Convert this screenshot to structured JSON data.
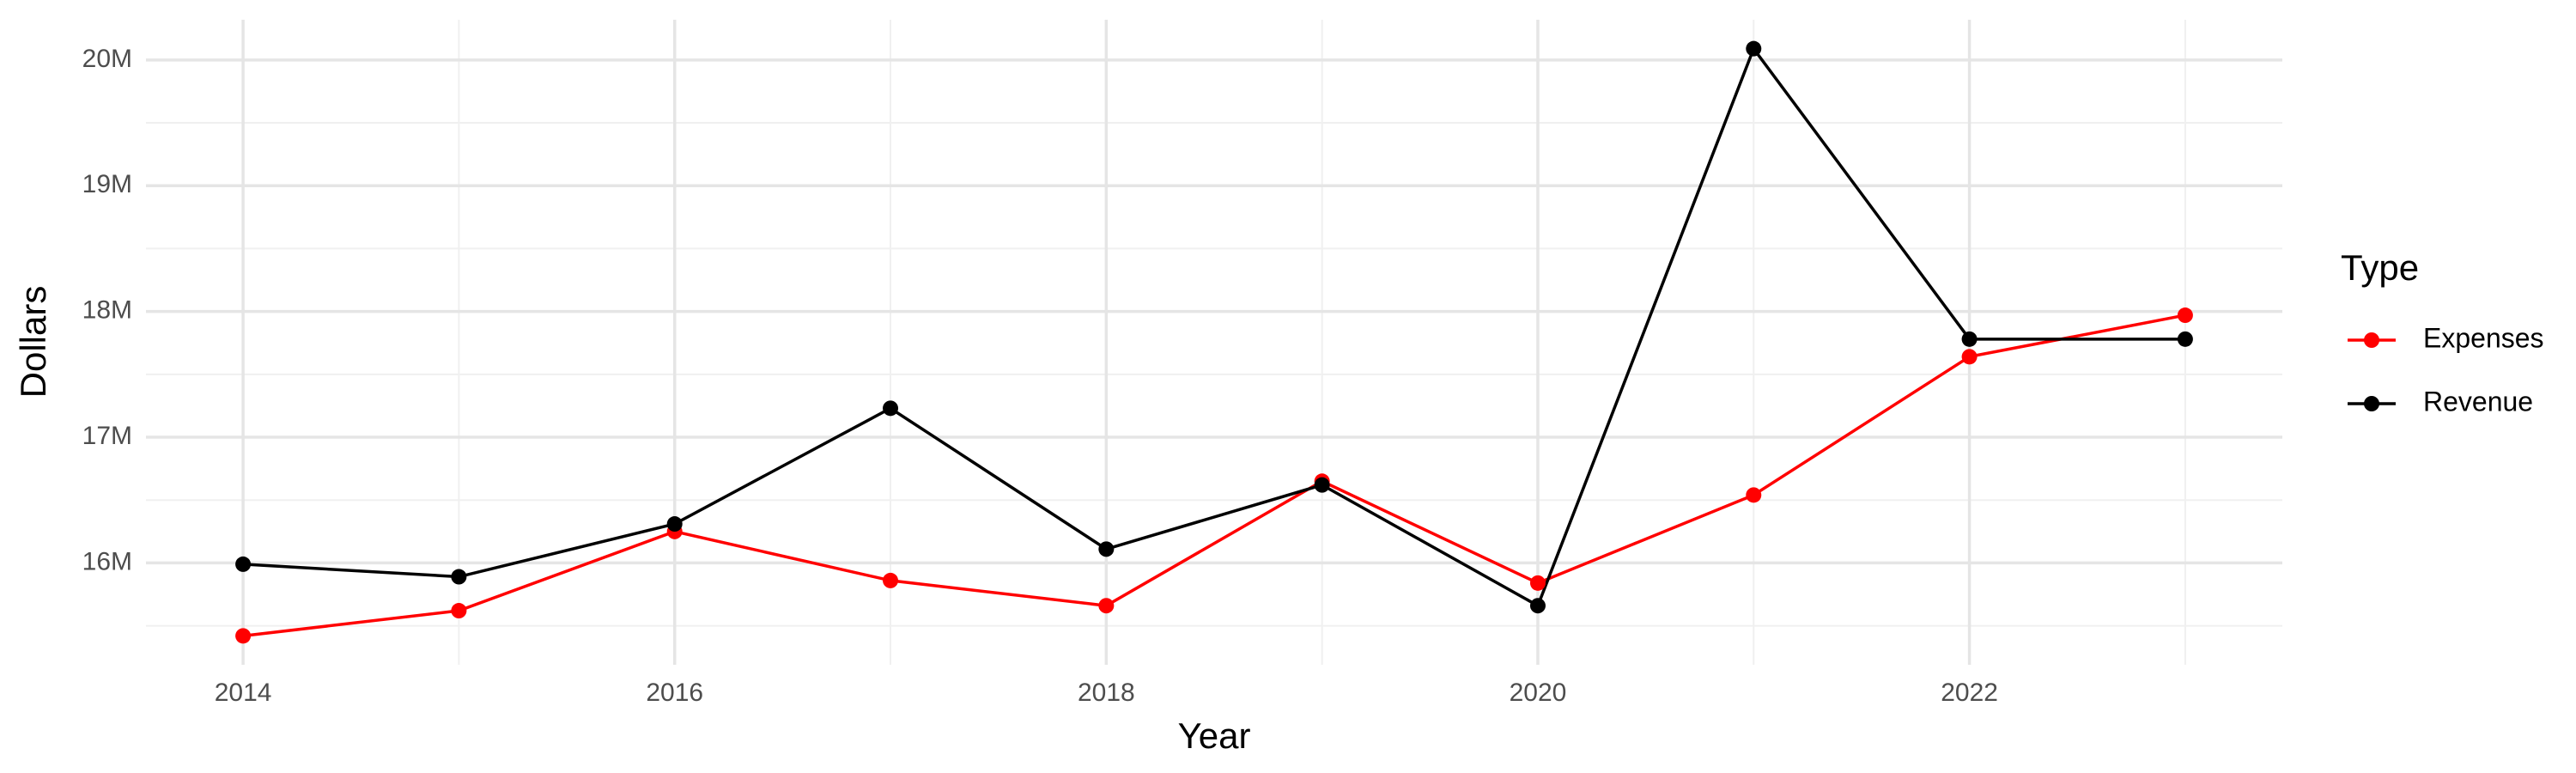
{
  "chart_data": {
    "type": "line",
    "x_label": "Year",
    "y_label": "Dollars",
    "legend_title": "Type",
    "x": [
      2014,
      2015,
      2016,
      2017,
      2018,
      2019,
      2020,
      2021,
      2022,
      2023
    ],
    "series": [
      {
        "name": "Expenses",
        "color": "#ff0000",
        "values": [
          15420000,
          15620000,
          16250000,
          15860000,
          15660000,
          16650000,
          15840000,
          16540000,
          17640000,
          17970000
        ]
      },
      {
        "name": "Revenue",
        "color": "#000000",
        "values": [
          15990000,
          15890000,
          16310000,
          17230000,
          16110000,
          16620000,
          15660000,
          20090000,
          17780000,
          17780000
        ]
      }
    ],
    "xlim": [
      2013.55,
      2023.45
    ],
    "xticks": [
      2014,
      2016,
      2018,
      2020,
      2022
    ],
    "ylim": [
      15190000,
      20320000
    ],
    "yticks": [
      {
        "value": 16000000,
        "label": "16M"
      },
      {
        "value": 17000000,
        "label": "17M"
      },
      {
        "value": 18000000,
        "label": "18M"
      },
      {
        "value": 19000000,
        "label": "19M"
      },
      {
        "value": 20000000,
        "label": "20M"
      }
    ],
    "grid": true,
    "legend": "right"
  }
}
